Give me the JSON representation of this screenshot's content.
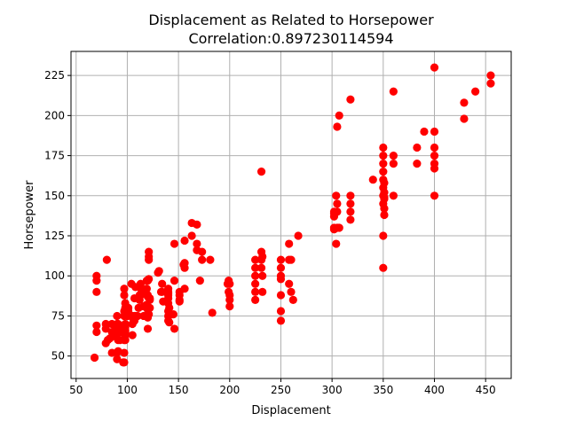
{
  "chart_data": {
    "type": "scatter",
    "title_line1": "Displacement as Related to Horsepower",
    "title_line2": "Correlation:0.897230114594",
    "xlabel": "Displacement",
    "ylabel": "Horsepower",
    "xlim": [
      45,
      475
    ],
    "ylim": [
      36,
      240
    ],
    "xticks": [
      50,
      100,
      150,
      200,
      250,
      300,
      350,
      400,
      450
    ],
    "yticks": [
      50,
      75,
      100,
      125,
      150,
      175,
      200,
      225
    ],
    "grid": true,
    "marker_color": "#ff0000",
    "points": [
      [
        68,
        49
      ],
      [
        70,
        65
      ],
      [
        70,
        69
      ],
      [
        70,
        90
      ],
      [
        70,
        97
      ],
      [
        70,
        100
      ],
      [
        79,
        58
      ],
      [
        79,
        67
      ],
      [
        79,
        70
      ],
      [
        80,
        110
      ],
      [
        81,
        60
      ],
      [
        83,
        61
      ],
      [
        85,
        52
      ],
      [
        85,
        65
      ],
      [
        85,
        70
      ],
      [
        86,
        64
      ],
      [
        86,
        65
      ],
      [
        88,
        69
      ],
      [
        89,
        62
      ],
      [
        90,
        48
      ],
      [
        90,
        52
      ],
      [
        90,
        67
      ],
      [
        90,
        70
      ],
      [
        90,
        75
      ],
      [
        91,
        53
      ],
      [
        91,
        60
      ],
      [
        91,
        67
      ],
      [
        91,
        68
      ],
      [
        91,
        70
      ],
      [
        92,
        65
      ],
      [
        93,
        60
      ],
      [
        94,
        65
      ],
      [
        96,
        46
      ],
      [
        97,
        46
      ],
      [
        97,
        52
      ],
      [
        97,
        60
      ],
      [
        97,
        67
      ],
      [
        97,
        75
      ],
      [
        97,
        78
      ],
      [
        97,
        88
      ],
      [
        97,
        92
      ],
      [
        98,
        60
      ],
      [
        98,
        63
      ],
      [
        98,
        65
      ],
      [
        98,
        66
      ],
      [
        98,
        68
      ],
      [
        98,
        70
      ],
      [
        98,
        76
      ],
      [
        98,
        80
      ],
      [
        98,
        83
      ],
      [
        100,
        75
      ],
      [
        101,
        78
      ],
      [
        101,
        80
      ],
      [
        104,
        95
      ],
      [
        105,
        63
      ],
      [
        105,
        70
      ],
      [
        105,
        74
      ],
      [
        105,
        75
      ],
      [
        107,
        72
      ],
      [
        107,
        75
      ],
      [
        107,
        86
      ],
      [
        108,
        75
      ],
      [
        108,
        93
      ],
      [
        110,
        75
      ],
      [
        111,
        80
      ],
      [
        112,
        85
      ],
      [
        112,
        88
      ],
      [
        113,
        88
      ],
      [
        113,
        95
      ],
      [
        114,
        91
      ],
      [
        116,
        75
      ],
      [
        116,
        81
      ],
      [
        116,
        90
      ],
      [
        119,
        82
      ],
      [
        119,
        92
      ],
      [
        119,
        97
      ],
      [
        120,
        67
      ],
      [
        120,
        74
      ],
      [
        120,
        75
      ],
      [
        120,
        79
      ],
      [
        120,
        87
      ],
      [
        120,
        88
      ],
      [
        120,
        97
      ],
      [
        121,
        76
      ],
      [
        121,
        98
      ],
      [
        121,
        110
      ],
      [
        121,
        112
      ],
      [
        121,
        115
      ],
      [
        122,
        80
      ],
      [
        122,
        85
      ],
      [
        122,
        86
      ],
      [
        130,
        102
      ],
      [
        131,
        103
      ],
      [
        133,
        90
      ],
      [
        134,
        90
      ],
      [
        134,
        95
      ],
      [
        135,
        84
      ],
      [
        140,
        72
      ],
      [
        140,
        75
      ],
      [
        140,
        78
      ],
      [
        140,
        83
      ],
      [
        140,
        86
      ],
      [
        140,
        88
      ],
      [
        140,
        89
      ],
      [
        140,
        90
      ],
      [
        140,
        92
      ],
      [
        141,
        71
      ],
      [
        141,
        80
      ],
      [
        145,
        76
      ],
      [
        146,
        67
      ],
      [
        146,
        97
      ],
      [
        146,
        120
      ],
      [
        151,
        84
      ],
      [
        151,
        85
      ],
      [
        151,
        88
      ],
      [
        151,
        90
      ],
      [
        155,
        107
      ],
      [
        156,
        92
      ],
      [
        156,
        105
      ],
      [
        156,
        108
      ],
      [
        156,
        122
      ],
      [
        163,
        125
      ],
      [
        163,
        133
      ],
      [
        168,
        116
      ],
      [
        168,
        120
      ],
      [
        168,
        132
      ],
      [
        171,
        97
      ],
      [
        173,
        110
      ],
      [
        173,
        115
      ],
      [
        181,
        110
      ],
      [
        183,
        77
      ],
      [
        198,
        95
      ],
      [
        199,
        90
      ],
      [
        199,
        97
      ],
      [
        200,
        81
      ],
      [
        200,
        85
      ],
      [
        200,
        88
      ],
      [
        200,
        95
      ],
      [
        225,
        85
      ],
      [
        225,
        90
      ],
      [
        225,
        95
      ],
      [
        225,
        100
      ],
      [
        225,
        105
      ],
      [
        225,
        110
      ],
      [
        231,
        105
      ],
      [
        231,
        110
      ],
      [
        231,
        115
      ],
      [
        231,
        165
      ],
      [
        232,
        90
      ],
      [
        232,
        100
      ],
      [
        232,
        112
      ],
      [
        250,
        72
      ],
      [
        250,
        78
      ],
      [
        250,
        88
      ],
      [
        250,
        98
      ],
      [
        250,
        100
      ],
      [
        250,
        105
      ],
      [
        250,
        110
      ],
      [
        258,
        95
      ],
      [
        258,
        110
      ],
      [
        258,
        120
      ],
      [
        260,
        90
      ],
      [
        260,
        110
      ],
      [
        262,
        85
      ],
      [
        267,
        125
      ],
      [
        302,
        129
      ],
      [
        302,
        130
      ],
      [
        302,
        137
      ],
      [
        302,
        139
      ],
      [
        302,
        140
      ],
      [
        304,
        120
      ],
      [
        304,
        150
      ],
      [
        305,
        130
      ],
      [
        305,
        140
      ],
      [
        305,
        145
      ],
      [
        305,
        193
      ],
      [
        307,
        130
      ],
      [
        307,
        200
      ],
      [
        318,
        135
      ],
      [
        318,
        140
      ],
      [
        318,
        145
      ],
      [
        318,
        150
      ],
      [
        318,
        210
      ],
      [
        340,
        160
      ],
      [
        350,
        105
      ],
      [
        350,
        125
      ],
      [
        350,
        145
      ],
      [
        350,
        150
      ],
      [
        350,
        155
      ],
      [
        350,
        160
      ],
      [
        350,
        165
      ],
      [
        350,
        170
      ],
      [
        350,
        175
      ],
      [
        350,
        180
      ],
      [
        351,
        138
      ],
      [
        351,
        142
      ],
      [
        351,
        148
      ],
      [
        351,
        149
      ],
      [
        351,
        152
      ],
      [
        351,
        158
      ],
      [
        360,
        150
      ],
      [
        360,
        170
      ],
      [
        360,
        175
      ],
      [
        360,
        215
      ],
      [
        383,
        170
      ],
      [
        383,
        180
      ],
      [
        390,
        190
      ],
      [
        400,
        150
      ],
      [
        400,
        167
      ],
      [
        400,
        170
      ],
      [
        400,
        175
      ],
      [
        400,
        180
      ],
      [
        400,
        190
      ],
      [
        400,
        230
      ],
      [
        429,
        198
      ],
      [
        429,
        208
      ],
      [
        440,
        215
      ],
      [
        455,
        220
      ],
      [
        455,
        225
      ]
    ]
  }
}
